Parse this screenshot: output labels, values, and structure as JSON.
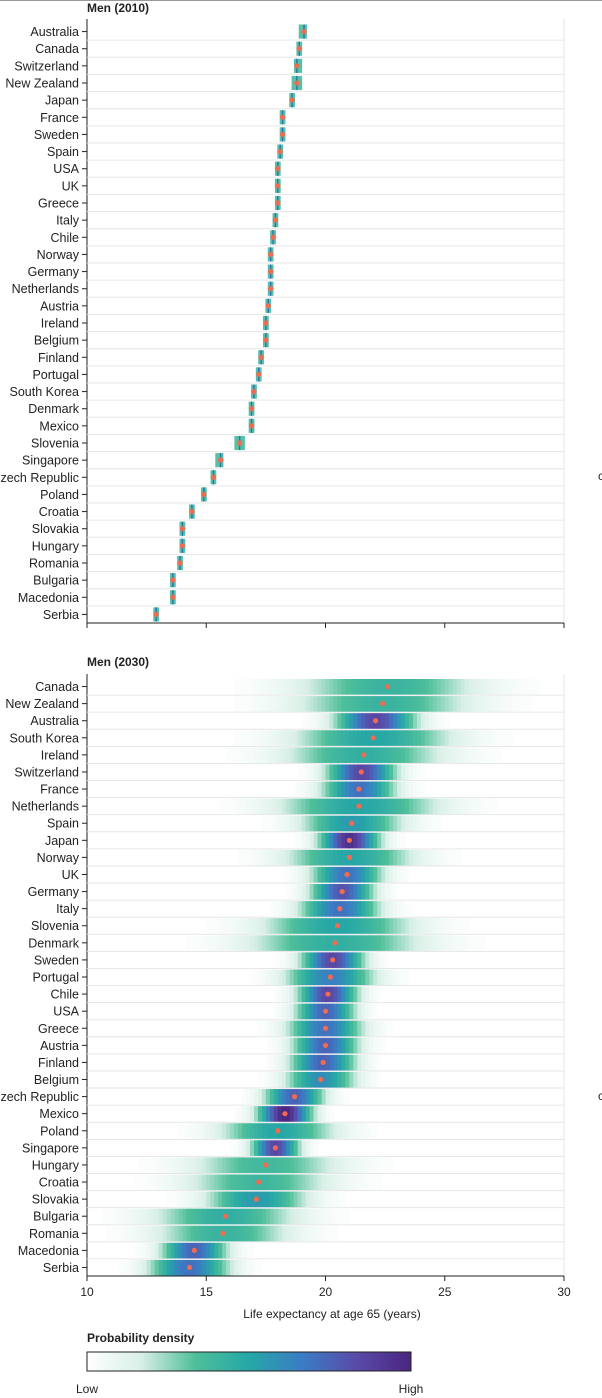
{
  "chart_data": [
    {
      "type": "heatmap",
      "title": "Men (2010)",
      "xlabel": "",
      "xlim": [
        10,
        30
      ],
      "series": [
        {
          "country": "Australia",
          "value": 19.1,
          "lo": 18.9,
          "hi": 19.2
        },
        {
          "country": "Canada",
          "value": 18.9,
          "lo": 18.8,
          "hi": 19.0
        },
        {
          "country": "Switzerland",
          "value": 18.8,
          "lo": 18.7,
          "hi": 19.0
        },
        {
          "country": "New Zealand",
          "value": 18.8,
          "lo": 18.6,
          "hi": 19.0
        },
        {
          "country": "Japan",
          "value": 18.6,
          "lo": 18.5,
          "hi": 18.7
        },
        {
          "country": "France",
          "value": 18.2,
          "lo": 18.1,
          "hi": 18.3
        },
        {
          "country": "Sweden",
          "value": 18.2,
          "lo": 18.1,
          "hi": 18.3
        },
        {
          "country": "Spain",
          "value": 18.1,
          "lo": 18.0,
          "hi": 18.2
        },
        {
          "country": "USA",
          "value": 18.0,
          "lo": 17.9,
          "hi": 18.1
        },
        {
          "country": "UK",
          "value": 18.0,
          "lo": 17.9,
          "hi": 18.1
        },
        {
          "country": "Greece",
          "value": 18.0,
          "lo": 17.9,
          "hi": 18.1
        },
        {
          "country": "Italy",
          "value": 17.9,
          "lo": 17.8,
          "hi": 18.0
        },
        {
          "country": "Chile",
          "value": 17.8,
          "lo": 17.7,
          "hi": 17.9
        },
        {
          "country": "Norway",
          "value": 17.7,
          "lo": 17.6,
          "hi": 17.8
        },
        {
          "country": "Germany",
          "value": 17.7,
          "lo": 17.6,
          "hi": 17.8
        },
        {
          "country": "Netherlands",
          "value": 17.7,
          "lo": 17.6,
          "hi": 17.8
        },
        {
          "country": "Austria",
          "value": 17.6,
          "lo": 17.5,
          "hi": 17.7
        },
        {
          "country": "Ireland",
          "value": 17.5,
          "lo": 17.4,
          "hi": 17.6
        },
        {
          "country": "Belgium",
          "value": 17.5,
          "lo": 17.4,
          "hi": 17.6
        },
        {
          "country": "Finland",
          "value": 17.3,
          "lo": 17.2,
          "hi": 17.4
        },
        {
          "country": "Portugal",
          "value": 17.2,
          "lo": 17.1,
          "hi": 17.3
        },
        {
          "country": "South Korea",
          "value": 17.0,
          "lo": 16.9,
          "hi": 17.1
        },
        {
          "country": "Denmark",
          "value": 16.9,
          "lo": 16.8,
          "hi": 17.0
        },
        {
          "country": "Mexico",
          "value": 16.9,
          "lo": 16.8,
          "hi": 17.0
        },
        {
          "country": "Slovenia",
          "value": 16.4,
          "lo": 16.2,
          "hi": 16.6
        },
        {
          "country": "Singapore",
          "value": 15.6,
          "lo": 15.4,
          "hi": 15.7
        },
        {
          "country": "Czech Republic",
          "value": 15.3,
          "lo": 15.2,
          "hi": 15.4
        },
        {
          "country": "Poland",
          "value": 14.9,
          "lo": 14.8,
          "hi": 15.0
        },
        {
          "country": "Croatia",
          "value": 14.4,
          "lo": 14.3,
          "hi": 14.5
        },
        {
          "country": "Slovakia",
          "value": 14.0,
          "lo": 13.9,
          "hi": 14.1
        },
        {
          "country": "Hungary",
          "value": 14.0,
          "lo": 13.9,
          "hi": 14.1
        },
        {
          "country": "Romania",
          "value": 13.9,
          "lo": 13.8,
          "hi": 14.0
        },
        {
          "country": "Bulgaria",
          "value": 13.6,
          "lo": 13.5,
          "hi": 13.7
        },
        {
          "country": "Macedonia",
          "value": 13.6,
          "lo": 13.5,
          "hi": 13.7
        },
        {
          "country": "Serbia",
          "value": 12.9,
          "lo": 12.8,
          "hi": 13.0
        }
      ]
    },
    {
      "type": "heatmap",
      "title": "Men (2030)",
      "xlabel": "Life expectancy at age 65 (years)",
      "xlim": [
        10,
        30
      ],
      "xticks": [
        10,
        15,
        20,
        25,
        30
      ],
      "series": [
        {
          "country": "Canada",
          "value": 22.6,
          "lo": 19.8,
          "hi": 26.0,
          "peak": 0.42
        },
        {
          "country": "New Zealand",
          "value": 22.4,
          "lo": 19.4,
          "hi": 25.5,
          "peak": 0.42
        },
        {
          "country": "Australia",
          "value": 22.1,
          "lo": 20.8,
          "hi": 23.5,
          "peak": 0.85
        },
        {
          "country": "South Korea",
          "value": 22.0,
          "lo": 19.0,
          "hi": 24.5,
          "peak": 0.5
        },
        {
          "country": "Ireland",
          "value": 21.6,
          "lo": 19.0,
          "hi": 24.5,
          "peak": 0.45
        },
        {
          "country": "Switzerland",
          "value": 21.5,
          "lo": 20.5,
          "hi": 22.8,
          "peak": 0.85
        },
        {
          "country": "France",
          "value": 21.4,
          "lo": 20.3,
          "hi": 22.8,
          "peak": 0.7
        },
        {
          "country": "Netherlands",
          "value": 21.4,
          "lo": 18.5,
          "hi": 24.0,
          "peak": 0.5
        },
        {
          "country": "Spain",
          "value": 21.1,
          "lo": 19.5,
          "hi": 23.0,
          "peak": 0.55
        },
        {
          "country": "Japan",
          "value": 21.0,
          "lo": 20.5,
          "hi": 22.5,
          "peak": 0.95
        },
        {
          "country": "Norway",
          "value": 21.0,
          "lo": 18.8,
          "hi": 23.2,
          "peak": 0.5
        },
        {
          "country": "UK",
          "value": 20.9,
          "lo": 19.8,
          "hi": 22.2,
          "peak": 0.7
        },
        {
          "country": "Germany",
          "value": 20.7,
          "lo": 19.7,
          "hi": 21.8,
          "peak": 0.8
        },
        {
          "country": "Italy",
          "value": 20.6,
          "lo": 19.5,
          "hi": 22.2,
          "peak": 0.7
        },
        {
          "country": "Slovenia",
          "value": 20.5,
          "lo": 17.8,
          "hi": 23.0,
          "peak": 0.5
        },
        {
          "country": "Denmark",
          "value": 20.4,
          "lo": 17.5,
          "hi": 23.5,
          "peak": 0.45
        },
        {
          "country": "Sweden",
          "value": 20.3,
          "lo": 19.5,
          "hi": 21.6,
          "peak": 0.85
        },
        {
          "country": "Portugal",
          "value": 20.2,
          "lo": 19.0,
          "hi": 22.0,
          "peak": 0.65
        },
        {
          "country": "Chile",
          "value": 20.1,
          "lo": 19.4,
          "hi": 21.4,
          "peak": 0.85
        },
        {
          "country": "USA",
          "value": 20.0,
          "lo": 19.2,
          "hi": 21.2,
          "peak": 0.75
        },
        {
          "country": "Greece",
          "value": 20.0,
          "lo": 19.0,
          "hi": 21.5,
          "peak": 0.7
        },
        {
          "country": "Austria",
          "value": 20.0,
          "lo": 19.2,
          "hi": 21.4,
          "peak": 0.75
        },
        {
          "country": "Finland",
          "value": 19.9,
          "lo": 19.2,
          "hi": 21.4,
          "peak": 0.75
        },
        {
          "country": "Belgium",
          "value": 19.8,
          "lo": 19.2,
          "hi": 21.6,
          "peak": 0.6
        },
        {
          "country": "Czech Republic",
          "value": 18.7,
          "lo": 17.8,
          "hi": 19.8,
          "peak": 0.75
        },
        {
          "country": "Mexico",
          "value": 18.3,
          "lo": 17.6,
          "hi": 19.4,
          "peak": 1.0
        },
        {
          "country": "Poland",
          "value": 18.0,
          "lo": 16.0,
          "hi": 20.0,
          "peak": 0.5
        },
        {
          "country": "Singapore",
          "value": 17.9,
          "lo": 17.2,
          "hi": 18.8,
          "peak": 0.85
        },
        {
          "country": "Hungary",
          "value": 17.5,
          "lo": 14.8,
          "hi": 20.0,
          "peak": 0.38
        },
        {
          "country": "Croatia",
          "value": 17.2,
          "lo": 14.5,
          "hi": 19.5,
          "peak": 0.4
        },
        {
          "country": "Slovakia",
          "value": 17.1,
          "lo": 15.3,
          "hi": 18.8,
          "peak": 0.55
        },
        {
          "country": "Bulgaria",
          "value": 15.8,
          "lo": 12.5,
          "hi": 17.5,
          "peak": 0.45
        },
        {
          "country": "Romania",
          "value": 15.7,
          "lo": 12.8,
          "hi": 17.5,
          "peak": 0.42
        },
        {
          "country": "Macedonia",
          "value": 14.5,
          "lo": 13.0,
          "hi": 15.2,
          "peak": 0.75
        },
        {
          "country": "Serbia",
          "value": 14.3,
          "lo": 12.8,
          "hi": 15.5,
          "peak": 0.7
        }
      ]
    }
  ],
  "legend": {
    "title": "Probability density",
    "low_label": "Low",
    "high_label": "High",
    "colors": [
      "#ffffff",
      "#d8efe6",
      "#4fbf9a",
      "#26a7a6",
      "#3b7cc4",
      "#5a4aa8",
      "#4a2680"
    ]
  },
  "colors": {
    "point": "#f06b4f",
    "row_line": "#e6e6e6",
    "axis": "#222222"
  },
  "edge_marks": [
    "c",
    "c"
  ]
}
